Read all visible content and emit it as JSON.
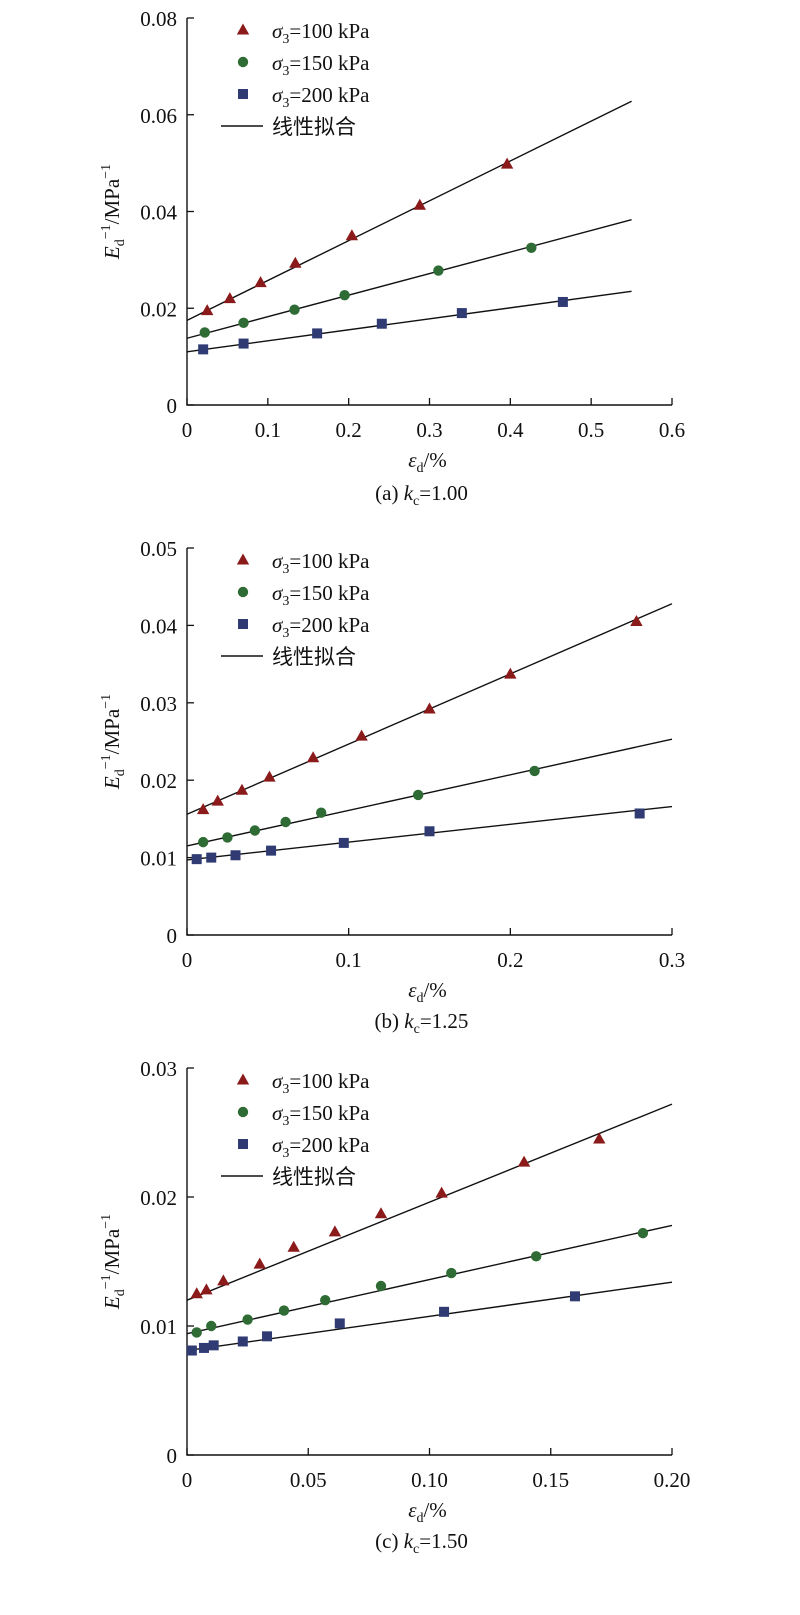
{
  "chart_data": [
    {
      "type": "scatter",
      "caption": "(a) kc=1.00",
      "xlabel": "εd/%",
      "ylabel": "Ed−1/MPa−1",
      "xlim": [
        0,
        0.6
      ],
      "ylim": [
        0,
        0.08
      ],
      "xticks": [
        0,
        0.1,
        0.2,
        0.3,
        0.4,
        0.5,
        0.6
      ],
      "xtick_labels": [
        "0",
        "0.1",
        "0.2",
        "0.3",
        "0.4",
        "0.5",
        "0.6"
      ],
      "yticks": [
        0,
        0.02,
        0.04,
        0.06,
        0.08
      ],
      "ytick_labels": [
        "0",
        "0.02",
        "0.04",
        "0.06",
        "0.08"
      ],
      "legend_position": "top-left",
      "fit_label": "线性拟合",
      "series": [
        {
          "name": "σ3=100 kPa",
          "marker": "triangle",
          "color": "#8b1a1a",
          "x": [
            0.025,
            0.053,
            0.091,
            0.134,
            0.204,
            0.288,
            0.396
          ],
          "y": [
            0.0195,
            0.022,
            0.0253,
            0.0293,
            0.035,
            0.0413,
            0.0498
          ],
          "fit": {
            "x": [
              0,
              0.55
            ],
            "y": [
              0.0175,
              0.0628
            ]
          }
        },
        {
          "name": "σ3=150 kPa",
          "marker": "circle",
          "color": "#2f6b34",
          "x": [
            0.022,
            0.07,
            0.133,
            0.195,
            0.311,
            0.426
          ],
          "y": [
            0.015,
            0.017,
            0.0197,
            0.0227,
            0.0278,
            0.0325
          ],
          "fit": {
            "x": [
              0,
              0.55
            ],
            "y": [
              0.0138,
              0.0383
            ]
          }
        },
        {
          "name": "σ3=200 kPa",
          "marker": "square",
          "color": "#2f3b72",
          "x": [
            0.02,
            0.07,
            0.161,
            0.241,
            0.34,
            0.465
          ],
          "y": [
            0.0115,
            0.0127,
            0.0148,
            0.0168,
            0.019,
            0.0213
          ],
          "fit": {
            "x": [
              0,
              0.55
            ],
            "y": [
              0.011,
              0.0235
            ]
          }
        }
      ]
    },
    {
      "type": "scatter",
      "caption": "(b) kc=1.25",
      "xlabel": "εd/%",
      "ylabel": "Ed−1/MPa−1",
      "xlim": [
        0,
        0.3
      ],
      "ylim": [
        0,
        0.05
      ],
      "xticks": [
        0,
        0.1,
        0.2,
        0.3
      ],
      "xtick_labels": [
        "0",
        "0.1",
        "0.2",
        "0.3"
      ],
      "yticks": [
        0,
        0.01,
        0.02,
        0.03,
        0.04,
        0.05
      ],
      "ytick_labels": [
        "0",
        "0.01",
        "0.02",
        "0.03",
        "0.04",
        "0.05"
      ],
      "legend_position": "top-left",
      "fit_label": "线性拟合",
      "series": [
        {
          "name": "σ3=100 kPa",
          "marker": "triangle",
          "color": "#8b1a1a",
          "x": [
            0.01,
            0.019,
            0.034,
            0.051,
            0.078,
            0.108,
            0.15,
            0.2,
            0.278
          ],
          "y": [
            0.0162,
            0.0173,
            0.0187,
            0.0204,
            0.0229,
            0.0257,
            0.0292,
            0.0337,
            0.0405
          ],
          "fit": {
            "x": [
              0,
              0.3
            ],
            "y": [
              0.0156,
              0.0428
            ]
          }
        },
        {
          "name": "σ3=150 kPa",
          "marker": "circle",
          "color": "#2f6b34",
          "x": [
            0.01,
            0.025,
            0.042,
            0.061,
            0.083,
            0.143,
            0.215
          ],
          "y": [
            0.012,
            0.0126,
            0.0135,
            0.0146,
            0.0158,
            0.0181,
            0.0212
          ],
          "fit": {
            "x": [
              0,
              0.3
            ],
            "y": [
              0.0115,
              0.0253
            ]
          }
        },
        {
          "name": "σ3=200 kPa",
          "marker": "square",
          "color": "#2f3b72",
          "x": [
            0.006,
            0.015,
            0.03,
            0.052,
            0.097,
            0.15,
            0.28
          ],
          "y": [
            0.0098,
            0.01,
            0.0103,
            0.0109,
            0.0119,
            0.0134,
            0.0157
          ],
          "fit": {
            "x": [
              0,
              0.3
            ],
            "y": [
              0.0097,
              0.0166
            ]
          }
        }
      ]
    },
    {
      "type": "scatter",
      "caption": "(c) kc=1.50",
      "xlabel": "εd/%",
      "ylabel": "Ed−1/MPa−1",
      "xlim": [
        0,
        0.2
      ],
      "ylim": [
        0,
        0.03
      ],
      "xticks": [
        0,
        0.05,
        0.1,
        0.15,
        0.2
      ],
      "xtick_labels": [
        "0",
        "0.05",
        "0.10",
        "0.15",
        "0.20"
      ],
      "yticks": [
        0,
        0.01,
        0.02,
        0.03
      ],
      "ytick_labels": [
        "0",
        "0.01",
        "0.02",
        "0.03"
      ],
      "legend_position": "top-left",
      "fit_label": "线性拟合",
      "series": [
        {
          "name": "σ3=100 kPa",
          "marker": "triangle",
          "color": "#8b1a1a",
          "x": [
            0.004,
            0.008,
            0.015,
            0.03,
            0.044,
            0.061,
            0.08,
            0.105,
            0.139,
            0.17
          ],
          "y": [
            0.0125,
            0.0128,
            0.0135,
            0.0148,
            0.0161,
            0.0173,
            0.0187,
            0.0203,
            0.0227,
            0.0245
          ],
          "fit": {
            "x": [
              0,
              0.2
            ],
            "y": [
              0.012,
              0.0272
            ]
          }
        },
        {
          "name": "σ3=150 kPa",
          "marker": "circle",
          "color": "#2f6b34",
          "x": [
            0.004,
            0.01,
            0.025,
            0.04,
            0.057,
            0.08,
            0.109,
            0.144,
            0.188
          ],
          "y": [
            0.0095,
            0.01,
            0.0105,
            0.0112,
            0.012,
            0.0131,
            0.0141,
            0.0154,
            0.0172
          ],
          "fit": {
            "x": [
              0,
              0.2
            ],
            "y": [
              0.0094,
              0.0178
            ]
          }
        },
        {
          "name": "σ3=200 kPa",
          "marker": "square",
          "color": "#2f3b72",
          "x": [
            0.002,
            0.007,
            0.011,
            0.023,
            0.033,
            0.063,
            0.106,
            0.16
          ],
          "y": [
            0.0081,
            0.0083,
            0.0085,
            0.0088,
            0.0092,
            0.0102,
            0.0111,
            0.0123
          ],
          "fit": {
            "x": [
              0,
              0.2
            ],
            "y": [
              0.0081,
              0.0134
            ]
          }
        }
      ]
    }
  ]
}
